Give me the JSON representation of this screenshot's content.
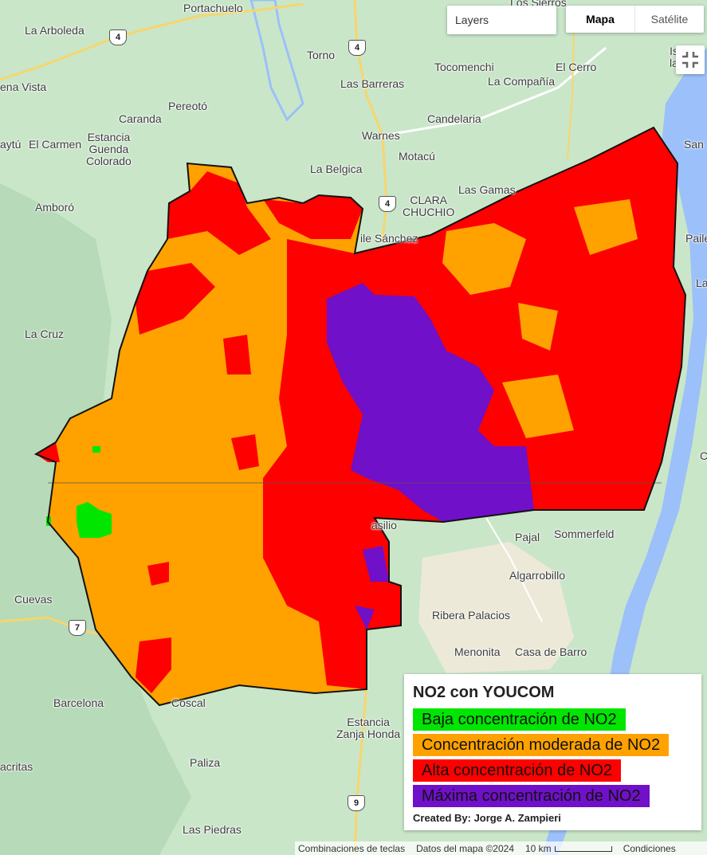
{
  "controls": {
    "layers_label": "Layers",
    "map_button": "Mapa",
    "satellite_button": "Satélite",
    "fullscreen_icon": "exit-fullscreen-icon"
  },
  "colors": {
    "low": "#00e600",
    "moderate": "#ffa200",
    "high": "#ff0000",
    "max": "#7010c8",
    "water": "#9cc0f9",
    "land": "#c9e6c9"
  },
  "legend": {
    "title": "NO2 con YOUCOM",
    "items": [
      {
        "label": "Baja concentración de NO2",
        "color": "#00e600"
      },
      {
        "label": "Concentración moderada de NO2",
        "color": "#ffa200"
      },
      {
        "label": "Alta concentración de NO2",
        "color": "#ff0000"
      },
      {
        "label": "Máxima concentración de NO2",
        "color": "#7010c8"
      }
    ],
    "credit": "Created By: Jorge A. Zampieri"
  },
  "places": {
    "portachuelo": "Portachuelo",
    "los_sierros": "Los Sierros",
    "la_arboleda": "La Arboleda",
    "torno": "Torno",
    "tocomenchi": "Tocomenchi",
    "el_cerro": "El Cerro",
    "las_barreras": "Las Barreras",
    "la_compania": "La Compañía",
    "buena_vista": "ena Vista",
    "pereoto": "Pereotó",
    "caranda": "Caranda",
    "candelaria": "Candelaria",
    "warnes": "Warnes",
    "motacu": "Motacú",
    "aytu": "aytú",
    "el_carmen": "El Carmen",
    "estancia_guenda": "Estancia\nGuenda\nColorado",
    "la_belgica": "La Belgica",
    "las_gamas": "Las Gamas",
    "clara_chuchio": "CLARA\nCHUCHIO",
    "amboro": "Amboró",
    "pile_sanchez": "ile Sánchez",
    "la_cruz": "La Cruz",
    "san": "San",
    "pail": "Paile",
    "la": "La",
    "basilio": "asilio",
    "pajal": "Pajal",
    "sommerfeld": "Sommerfeld",
    "algarrobillo": "Algarrobillo",
    "cuevas": "Cuevas",
    "ribera_palacios": "Ribera Palacios",
    "menonita": "Menonita",
    "casa_de_barro": "Casa de Barro",
    "barcelona": "Barcelona",
    "coscal": "Coscal",
    "estancia_zanja": "Estancia\nZanja Honda",
    "cruz_right": "C",
    "acritas": "acritas",
    "paliza": "Paliza",
    "las_piedras": "Las Piedras",
    "isla_top": "Is\nla"
  },
  "shields": {
    "r4a": "4",
    "r4b": "4",
    "r4c": "4",
    "r7": "7",
    "r9": "9"
  },
  "attribution": {
    "shortcuts": "Combinaciones de teclas",
    "data": "Datos del mapa ©2024",
    "scale": "10 km",
    "terms": "Condiciones"
  }
}
